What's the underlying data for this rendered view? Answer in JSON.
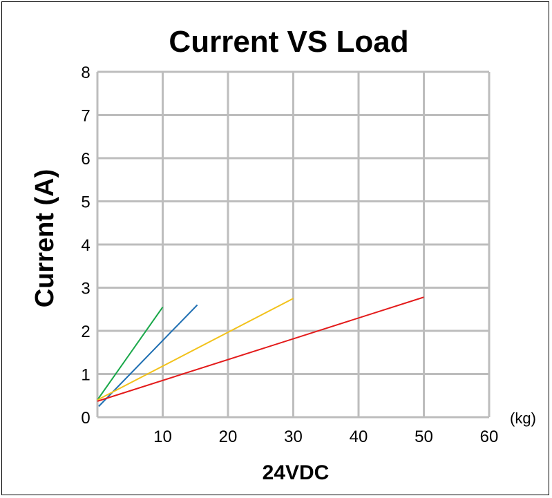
{
  "chart_data": {
    "type": "line",
    "title": "Current VS Load",
    "xlabel": "24VDC",
    "xunit": "(kg)",
    "ylabel": "Current (A)",
    "xlim": [
      0,
      60
    ],
    "ylim": [
      0,
      8
    ],
    "xticks": [
      10,
      20,
      30,
      40,
      50,
      60
    ],
    "yticks": [
      0,
      1,
      2,
      3,
      4,
      5,
      6,
      7,
      8
    ],
    "grid": true,
    "series": [
      {
        "name": "green",
        "color": "#1aa84a",
        "points": [
          [
            0,
            0.4
          ],
          [
            10,
            2.55
          ]
        ]
      },
      {
        "name": "blue",
        "color": "#1f6fb2",
        "points": [
          [
            0.2,
            0.25
          ],
          [
            15.3,
            2.6
          ]
        ]
      },
      {
        "name": "yellow",
        "color": "#f2c21b",
        "points": [
          [
            0,
            0.4
          ],
          [
            30,
            2.75
          ]
        ]
      },
      {
        "name": "red",
        "color": "#e31b1b",
        "points": [
          [
            0,
            0.37
          ],
          [
            50,
            2.78
          ]
        ]
      }
    ]
  }
}
